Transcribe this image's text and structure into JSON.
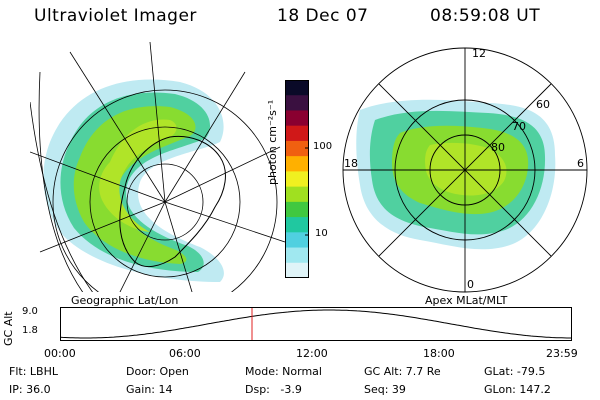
{
  "header": {
    "instrument": "Ultraviolet Imager",
    "date": "18 Dec 07",
    "time": "08:59:08 UT"
  },
  "colorbar": {
    "unit_label": "photon cm⁻²s⁻¹",
    "ticks": [
      "100",
      "10"
    ],
    "colors": [
      "#0a0a28",
      "#3a1040",
      "#8a0030",
      "#d01818",
      "#f06010",
      "#ffb000",
      "#f0f020",
      "#a0e020",
      "#40c840",
      "#20c8a0",
      "#50d0e0",
      "#a0e8f0",
      "#e0f4f8"
    ]
  },
  "left_panel": {
    "label": "Geographic Lat/Lon"
  },
  "right_panel": {
    "label": "Apex MLat/MLT",
    "mlt_labels": {
      "top": "12",
      "left": "18",
      "right": "6",
      "bottom": "0"
    },
    "lat_labels": [
      "60",
      "70",
      "80"
    ]
  },
  "altitude_plot": {
    "ylabel": "GC Alt",
    "yticks": [
      "9.0",
      "1.8"
    ],
    "xticks": [
      "00:00",
      "06:00",
      "12:00",
      "18:00",
      "23:59"
    ],
    "marker_time_fraction": 0.375
  },
  "status": {
    "filter": "Flt: LBHL",
    "ip": "IP: 36.0",
    "door": "Door: Open",
    "gain": "Gain: 14",
    "mode": "Mode: Normal",
    "dsp": "Dsp:   -3.9",
    "gc_alt": "GC Alt: 7.7 Re",
    "seq": "Seq: 39",
    "glat": "GLat: -79.5",
    "glon": "GLon: 147.2"
  }
}
